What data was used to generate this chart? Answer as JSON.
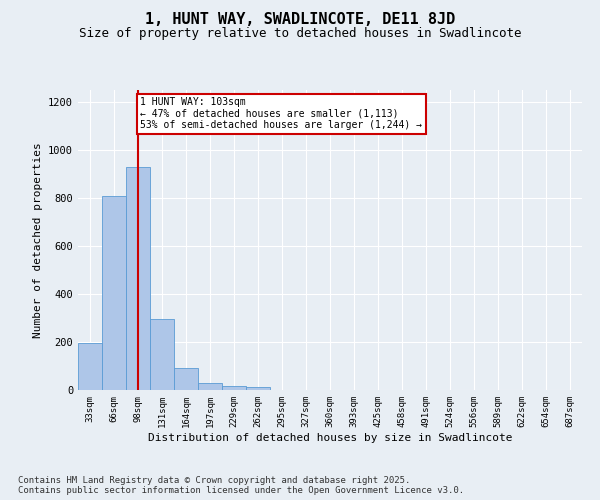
{
  "title": "1, HUNT WAY, SWADLINCOTE, DE11 8JD",
  "subtitle": "Size of property relative to detached houses in Swadlincote",
  "xlabel": "Distribution of detached houses by size in Swadlincote",
  "ylabel": "Number of detached properties",
  "bar_labels": [
    "33sqm",
    "66sqm",
    "98sqm",
    "131sqm",
    "164sqm",
    "197sqm",
    "229sqm",
    "262sqm",
    "295sqm",
    "327sqm",
    "360sqm",
    "393sqm",
    "425sqm",
    "458sqm",
    "491sqm",
    "524sqm",
    "556sqm",
    "589sqm",
    "622sqm",
    "654sqm",
    "687sqm"
  ],
  "bar_values": [
    195,
    810,
    930,
    295,
    90,
    28,
    18,
    12,
    0,
    0,
    0,
    0,
    0,
    0,
    0,
    0,
    0,
    0,
    0,
    0,
    0
  ],
  "bar_color": "#aec6e8",
  "bar_edge_color": "#5a9bd5",
  "vline_x": 2,
  "vline_color": "#cc0000",
  "annotation_text": "1 HUNT WAY: 103sqm\n← 47% of detached houses are smaller (1,113)\n53% of semi-detached houses are larger (1,244) →",
  "annotation_box_color": "#ffffff",
  "annotation_box_edge": "#cc0000",
  "ylim": [
    0,
    1250
  ],
  "yticks": [
    0,
    200,
    400,
    600,
    800,
    1000,
    1200
  ],
  "background_color": "#e8eef4",
  "plot_bg_color": "#e8eef4",
  "footer_text": "Contains HM Land Registry data © Crown copyright and database right 2025.\nContains public sector information licensed under the Open Government Licence v3.0.",
  "title_fontsize": 11,
  "subtitle_fontsize": 9,
  "xlabel_fontsize": 8,
  "ylabel_fontsize": 8,
  "footer_fontsize": 6.5
}
